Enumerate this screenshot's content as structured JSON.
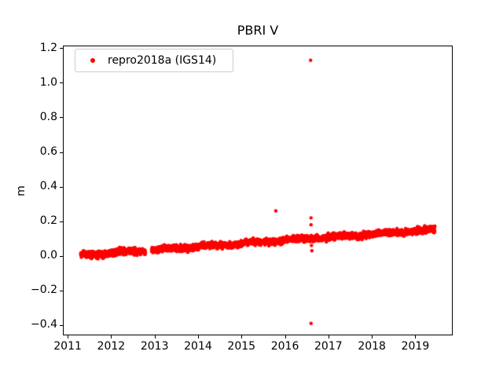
{
  "chart_data": {
    "type": "scatter",
    "title": "PBRI V",
    "xlabel": "",
    "ylabel": "m",
    "xlim": [
      2010.89,
      2019.86
    ],
    "ylim": [
      -0.459,
      1.215
    ],
    "grid": false,
    "xticks": [
      {
        "value": 2011,
        "label": "2011"
      },
      {
        "value": 2012,
        "label": "2012"
      },
      {
        "value": 2013,
        "label": "2013"
      },
      {
        "value": 2014,
        "label": "2014"
      },
      {
        "value": 2015,
        "label": "2015"
      },
      {
        "value": 2016,
        "label": "2016"
      },
      {
        "value": 2017,
        "label": "2017"
      },
      {
        "value": 2018,
        "label": "2018"
      },
      {
        "value": 2019,
        "label": "2019"
      }
    ],
    "yticks": [
      {
        "value": -0.4,
        "label": "−0.4"
      },
      {
        "value": -0.2,
        "label": "−0.2"
      },
      {
        "value": 0.0,
        "label": "0.0"
      },
      {
        "value": 0.2,
        "label": "0.2"
      },
      {
        "value": 0.4,
        "label": "0.4"
      },
      {
        "value": 0.6,
        "label": "0.6"
      },
      {
        "value": 0.8,
        "label": "0.8"
      },
      {
        "value": 1.0,
        "label": "1.0"
      },
      {
        "value": 1.2,
        "label": "1.2"
      }
    ],
    "legend": {
      "position": "upper left",
      "entries": [
        {
          "label": "repro2018a (IGS14)",
          "color": "#ff0000",
          "marker": "dot"
        }
      ]
    },
    "series": [
      {
        "name": "repro2018a (IGS14)",
        "color": "#ff0000",
        "marker": "point",
        "marker_radius_px": 2.2,
        "band": {
          "x_start": 2011.3,
          "x_end": 2019.45,
          "y_start": 0.005,
          "y_end": 0.152,
          "trend_m_per_yr": 0.018,
          "noise_sigma": 0.009,
          "seasonal_amplitude": 0.005,
          "points_per_year": 350,
          "gaps": [
            [
              2012.79,
              2012.93
            ]
          ]
        },
        "outliers": [
          [
            2015.79,
            0.26
          ],
          [
            2016.59,
            1.13
          ],
          [
            2016.6,
            0.22
          ],
          [
            2016.6,
            0.18
          ],
          [
            2016.61,
            0.06
          ],
          [
            2016.62,
            0.03
          ],
          [
            2016.6,
            -0.39
          ]
        ]
      }
    ],
    "colors": {
      "series": "#ff0000",
      "axis": "#000000",
      "legend_border": "#cccccc",
      "background": "#ffffff"
    }
  }
}
